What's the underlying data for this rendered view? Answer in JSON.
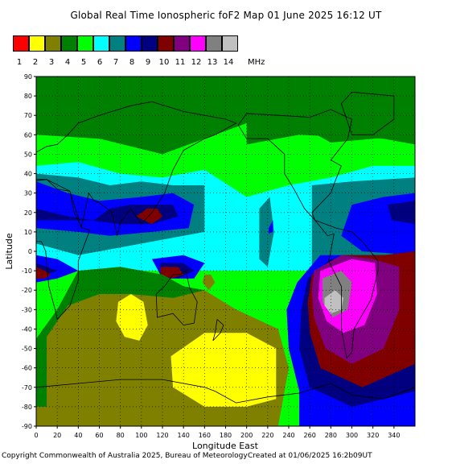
{
  "chart_data": {
    "type": "heatmap",
    "title": "Global Real Time Ionospheric foF2 Map   01 June 2025 16:12 UT",
    "xlabel": "Longitude East",
    "ylabel": "Latitude",
    "xlim": [
      0,
      360
    ],
    "ylim": [
      -90,
      90
    ],
    "x_ticks": [
      0,
      20,
      40,
      60,
      80,
      100,
      120,
      140,
      160,
      180,
      200,
      220,
      240,
      260,
      280,
      300,
      320,
      340
    ],
    "y_ticks": [
      90,
      80,
      70,
      60,
      50,
      40,
      30,
      20,
      10,
      0,
      -10,
      -20,
      -30,
      -40,
      -50,
      -60,
      -70,
      -80,
      -90
    ],
    "grid": true,
    "legend": {
      "placement": "top-left",
      "unit": "MHz",
      "levels": [
        {
          "label": "1",
          "color": "#ff0000"
        },
        {
          "label": "2",
          "color": "#ffff00"
        },
        {
          "label": "3",
          "color": "#808000"
        },
        {
          "label": "4",
          "color": "#008000"
        },
        {
          "label": "5",
          "color": "#00ff00"
        },
        {
          "label": "6",
          "color": "#00ffff"
        },
        {
          "label": "7",
          "color": "#008080"
        },
        {
          "label": "8",
          "color": "#0000ff"
        },
        {
          "label": "9",
          "color": "#000080"
        },
        {
          "label": "10",
          "color": "#800000"
        },
        {
          "label": "11",
          "color": "#800080"
        },
        {
          "label": "12",
          "color": "#ff00ff"
        },
        {
          "label": "13",
          "color": "#808080"
        },
        {
          "label": "14",
          "color": "#c0c0c0"
        }
      ]
    },
    "regions": [
      {
        "level": 5,
        "points": [
          [
            0,
            60
          ],
          [
            60,
            58
          ],
          [
            120,
            50
          ],
          [
            180,
            62
          ],
          [
            240,
            68
          ],
          [
            280,
            56
          ],
          [
            320,
            58
          ],
          [
            360,
            60
          ],
          [
            360,
            -90
          ],
          [
            0,
            -90
          ]
        ]
      },
      {
        "level": 4,
        "points": [
          [
            0,
            90
          ],
          [
            360,
            90
          ],
          [
            360,
            60
          ],
          [
            320,
            58
          ],
          [
            280,
            56
          ],
          [
            240,
            68
          ],
          [
            200,
            66
          ],
          [
            180,
            62
          ],
          [
            120,
            50
          ],
          [
            60,
            58
          ],
          [
            0,
            60
          ]
        ]
      },
      {
        "level": 4,
        "points": [
          [
            200,
            55
          ],
          [
            250,
            60
          ],
          [
            330,
            58
          ],
          [
            360,
            55
          ],
          [
            360,
            90
          ],
          [
            200,
            90
          ]
        ]
      },
      {
        "level": 6,
        "points": [
          [
            0,
            44
          ],
          [
            40,
            46
          ],
          [
            80,
            40
          ],
          [
            120,
            38
          ],
          [
            160,
            42
          ],
          [
            200,
            28
          ],
          [
            240,
            34
          ],
          [
            280,
            38
          ],
          [
            320,
            44
          ],
          [
            360,
            44
          ],
          [
            360,
            -10
          ],
          [
            0,
            -10
          ]
        ]
      },
      {
        "level": 7,
        "points": [
          [
            0,
            40
          ],
          [
            40,
            38
          ],
          [
            70,
            34
          ],
          [
            100,
            36
          ],
          [
            130,
            34
          ],
          [
            160,
            34
          ],
          [
            160,
            10
          ],
          [
            100,
            4
          ],
          [
            40,
            -2
          ],
          [
            0,
            4
          ]
        ]
      },
      {
        "level": 7,
        "points": [
          [
            262,
            34
          ],
          [
            300,
            36
          ],
          [
            360,
            38
          ],
          [
            360,
            -10
          ],
          [
            262,
            -8
          ]
        ]
      },
      {
        "level": 7,
        "points": [
          [
            212,
            22
          ],
          [
            222,
            28
          ],
          [
            226,
            10
          ],
          [
            220,
            -8
          ],
          [
            212,
            -4
          ]
        ]
      },
      {
        "level": 8,
        "points": [
          [
            0,
            36
          ],
          [
            30,
            30
          ],
          [
            60,
            26
          ],
          [
            100,
            28
          ],
          [
            130,
            30
          ],
          [
            150,
            24
          ],
          [
            145,
            12
          ],
          [
            110,
            10
          ],
          [
            70,
            8
          ],
          [
            40,
            10
          ],
          [
            0,
            12
          ]
        ]
      },
      {
        "level": 8,
        "points": [
          [
            300,
            24
          ],
          [
            330,
            28
          ],
          [
            360,
            30
          ],
          [
            360,
            -2
          ],
          [
            310,
            0
          ],
          [
            290,
            8
          ]
        ]
      },
      {
        "level": 9,
        "points": [
          [
            0,
            22
          ],
          [
            30,
            18
          ],
          [
            55,
            16
          ],
          [
            70,
            22
          ],
          [
            90,
            24
          ],
          [
            112,
            24
          ],
          [
            130,
            24
          ],
          [
            135,
            18
          ],
          [
            110,
            14
          ],
          [
            80,
            14
          ],
          [
            50,
            16
          ],
          [
            0,
            16
          ]
        ]
      },
      {
        "level": 9,
        "points": [
          [
            334,
            24
          ],
          [
            360,
            26
          ],
          [
            360,
            14
          ],
          [
            338,
            16
          ]
        ]
      },
      {
        "level": 10,
        "points": [
          [
            95,
            18
          ],
          [
            105,
            22
          ],
          [
            115,
            22
          ],
          [
            120,
            18
          ],
          [
            110,
            14
          ]
        ]
      },
      {
        "level": 8,
        "points": [
          [
            0,
            -2
          ],
          [
            20,
            -4
          ],
          [
            40,
            -10
          ],
          [
            20,
            -14
          ],
          [
            0,
            -16
          ]
        ]
      },
      {
        "level": 9,
        "points": [
          [
            0,
            -6
          ],
          [
            10,
            -8
          ],
          [
            20,
            -10
          ],
          [
            10,
            -12
          ],
          [
            0,
            -12
          ]
        ]
      },
      {
        "level": 10,
        "points": [
          [
            0,
            -8
          ],
          [
            8,
            -10
          ],
          [
            14,
            -12
          ],
          [
            8,
            -14
          ],
          [
            0,
            -14
          ]
        ]
      },
      {
        "level": 8,
        "points": [
          [
            110,
            -4
          ],
          [
            140,
            -2
          ],
          [
            160,
            -6
          ],
          [
            150,
            -14
          ],
          [
            120,
            -14
          ]
        ]
      },
      {
        "level": 9,
        "points": [
          [
            118,
            -6
          ],
          [
            140,
            -6
          ],
          [
            150,
            -10
          ],
          [
            135,
            -14
          ],
          [
            118,
            -12
          ]
        ]
      },
      {
        "level": 10,
        "points": [
          [
            118,
            -8
          ],
          [
            135,
            -8
          ],
          [
            140,
            -12
          ],
          [
            128,
            -14
          ],
          [
            118,
            -12
          ]
        ]
      },
      {
        "level": 3,
        "points": [
          [
            40,
            -10
          ],
          [
            80,
            -8
          ],
          [
            120,
            -12
          ],
          [
            140,
            -18
          ],
          [
            160,
            -20
          ],
          [
            190,
            -30
          ],
          [
            230,
            -40
          ],
          [
            240,
            -60
          ],
          [
            230,
            -90
          ],
          [
            0,
            -90
          ],
          [
            0,
            -45
          ],
          [
            20,
            -30
          ]
        ]
      },
      {
        "level": 4,
        "points": [
          [
            40,
            -10
          ],
          [
            80,
            -8
          ],
          [
            120,
            -12
          ],
          [
            140,
            -18
          ],
          [
            160,
            -20
          ],
          [
            130,
            -24
          ],
          [
            90,
            -22
          ],
          [
            60,
            -22
          ],
          [
            30,
            -28
          ],
          [
            10,
            -44
          ],
          [
            10,
            -80
          ],
          [
            0,
            -80
          ],
          [
            0,
            -45
          ],
          [
            20,
            -30
          ]
        ]
      },
      {
        "level": 2,
        "points": [
          [
            78,
            -26
          ],
          [
            90,
            -22
          ],
          [
            102,
            -26
          ],
          [
            106,
            -38
          ],
          [
            98,
            -46
          ],
          [
            84,
            -44
          ],
          [
            76,
            -36
          ]
        ]
      },
      {
        "level": 2,
        "points": [
          [
            128,
            -54
          ],
          [
            160,
            -42
          ],
          [
            200,
            -42
          ],
          [
            228,
            -50
          ],
          [
            228,
            -76
          ],
          [
            200,
            -80
          ],
          [
            160,
            -80
          ],
          [
            130,
            -70
          ]
        ]
      },
      {
        "level": 3,
        "points": [
          [
            160,
            -12
          ],
          [
            166,
            -12
          ],
          [
            170,
            -16
          ],
          [
            164,
            -20
          ],
          [
            158,
            -16
          ]
        ]
      },
      {
        "level": 8,
        "points": [
          [
            248,
            -16
          ],
          [
            270,
            -2
          ],
          [
            310,
            -2
          ],
          [
            360,
            -2
          ],
          [
            360,
            -90
          ],
          [
            250,
            -90
          ],
          [
            250,
            -72
          ],
          [
            240,
            -50
          ],
          [
            238,
            -30
          ]
        ]
      },
      {
        "level": 9,
        "points": [
          [
            258,
            -14
          ],
          [
            280,
            -4
          ],
          [
            320,
            -2
          ],
          [
            360,
            -2
          ],
          [
            360,
            -72
          ],
          [
            300,
            -80
          ],
          [
            260,
            -70
          ],
          [
            250,
            -50
          ],
          [
            252,
            -30
          ]
        ]
      },
      {
        "level": 10,
        "points": [
          [
            262,
            -12
          ],
          [
            290,
            -2
          ],
          [
            330,
            -2
          ],
          [
            360,
            0
          ],
          [
            360,
            -58
          ],
          [
            310,
            -70
          ],
          [
            270,
            -60
          ],
          [
            260,
            -42
          ],
          [
            258,
            -26
          ]
        ]
      },
      {
        "level": 11,
        "points": [
          [
            264,
            -10
          ],
          [
            290,
            -2
          ],
          [
            320,
            -4
          ],
          [
            345,
            -8
          ],
          [
            345,
            -30
          ],
          [
            330,
            -50
          ],
          [
            300,
            -58
          ],
          [
            275,
            -50
          ],
          [
            264,
            -34
          ],
          [
            262,
            -20
          ]
        ]
      },
      {
        "level": 12,
        "points": [
          [
            270,
            -10
          ],
          [
            300,
            -4
          ],
          [
            322,
            -6
          ],
          [
            324,
            -22
          ],
          [
            312,
            -38
          ],
          [
            292,
            -42
          ],
          [
            276,
            -36
          ],
          [
            268,
            -24
          ]
        ]
      },
      {
        "level": 13,
        "points": [
          [
            272,
            -14
          ],
          [
            290,
            -10
          ],
          [
            300,
            -16
          ],
          [
            296,
            -30
          ],
          [
            282,
            -34
          ],
          [
            272,
            -26
          ]
        ]
      },
      {
        "level": 14,
        "points": [
          [
            274,
            -24
          ],
          [
            284,
            -20
          ],
          [
            292,
            -24
          ],
          [
            290,
            -30
          ],
          [
            280,
            -32
          ],
          [
            274,
            -28
          ]
        ]
      },
      {
        "level": 8,
        "points": [
          [
            221,
            12
          ],
          [
            225,
            16
          ],
          [
            225,
            10
          ],
          [
            221,
            9
          ]
        ]
      }
    ]
  },
  "footer": {
    "copyright": "Copyright Commonwealth of Australia 2025, Bureau of Meteorology",
    "created": "Created at 01/06/2025 16:2b09UT"
  }
}
